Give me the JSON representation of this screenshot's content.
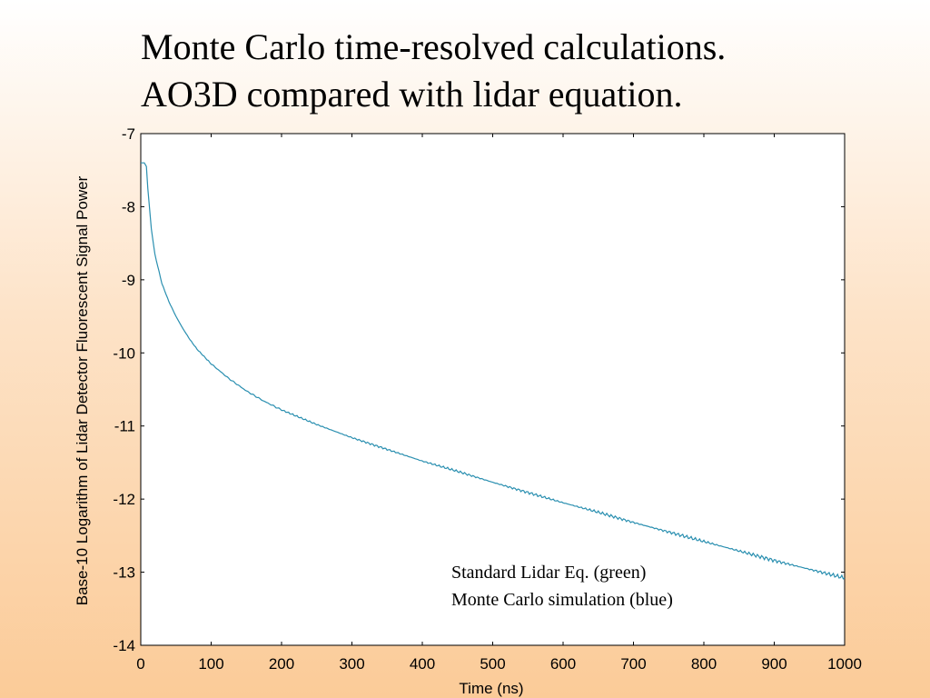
{
  "slide": {
    "title_line1": "Monte Carlo time-resolved calculations.",
    "title_line2": "AO3D compared with lidar equation."
  },
  "chart_data": {
    "type": "line",
    "xlabel": "Time (ns)",
    "ylabel": "Base-10 Logarithm of Lidar Detector Fluorescent Signal Power",
    "xlim": [
      0,
      1000
    ],
    "ylim": [
      -14,
      -7
    ],
    "xticks": [
      0,
      100,
      200,
      300,
      400,
      500,
      600,
      700,
      800,
      900,
      1000
    ],
    "yticks": [
      -7,
      -8,
      -9,
      -10,
      -11,
      -12,
      -13,
      -14
    ],
    "grid": false,
    "annotations": [
      "Standard Lidar Eq. (green)",
      "Monte Carlo simulation (blue)"
    ],
    "line_color": "#2a8fb0",
    "series": [
      {
        "x": [
          0,
          5,
          8,
          10,
          15,
          20,
          30,
          40,
          50,
          60,
          70,
          80,
          90,
          100,
          125,
          150,
          175,
          200,
          250,
          300,
          350,
          400,
          450,
          500,
          550,
          600,
          650,
          700,
          750,
          800,
          850,
          900,
          950,
          1000
        ],
        "values": [
          -7.4,
          -7.4,
          -7.45,
          -7.75,
          -8.3,
          -8.65,
          -9.05,
          -9.3,
          -9.5,
          -9.67,
          -9.82,
          -9.95,
          -10.05,
          -10.15,
          -10.35,
          -10.52,
          -10.66,
          -10.78,
          -10.98,
          -11.16,
          -11.32,
          -11.48,
          -11.62,
          -11.77,
          -11.91,
          -12.05,
          -12.18,
          -12.32,
          -12.45,
          -12.58,
          -12.71,
          -12.84,
          -12.96,
          -13.08
        ]
      }
    ]
  }
}
